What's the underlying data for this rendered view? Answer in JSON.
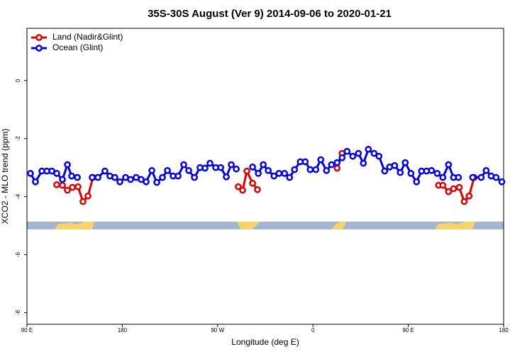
{
  "chart_data": {
    "type": "line",
    "title": "35S-30S August (Ver 9)   2014-09-06 to 2020-01-21",
    "x_label": "Longitude (deg E)",
    "y_label": "XCO2 - MLO trend (ppm)",
    "xlim": [
      90,
      540
    ],
    "xticks": [
      {
        "value": 90,
        "label": "90 E"
      },
      180,
      {
        "value": 270,
        "label": "90 W"
      },
      {
        "value": 360,
        "label": "0"
      },
      {
        "value": 450,
        "label": "90 E"
      },
      {
        "value": 540,
        "label": "180"
      }
    ],
    "ylim": [
      -8.4,
      1.8
    ],
    "yticks": [
      0,
      -2,
      -4,
      -6,
      -8
    ],
    "legend": "top-left",
    "series": [
      {
        "name": "Land (Nadir&Glint)",
        "color": "#e00000",
        "x": [
          118.1,
          123.5,
          128.2,
          132.9,
          138.2,
          142.9,
          147.6,
          152.3,
          null,
          289.5,
          293.6,
          297.6,
          303,
          307.6,
          null,
          382.8,
          387.5,
          null,
          478.6,
          482.6,
          488,
          492.7,
          498.1,
          502.8,
          507.4,
          512.2
        ],
        "values": [
          -3.59,
          -3.61,
          -3.78,
          -3.68,
          -3.66,
          -4.17,
          -3.98,
          -3.34,
          null,
          -3.66,
          -3.78,
          -3.12,
          -3.54,
          -3.76,
          null,
          -3.02,
          -2.51,
          null,
          -3.61,
          -3.61,
          -3.83,
          -3.73,
          -3.68,
          -4.17,
          -3.98,
          -3.34
        ]
      },
      {
        "name": "Ocean (Glint)",
        "color": "#0000ee",
        "x": [
          93.3,
          98,
          104.1,
          108.8,
          113.5,
          118.1,
          123.5,
          128.2,
          132.2,
          137.6,
          null,
          151.6,
          157,
          163.6,
          168.3,
          173,
          177.7,
          183.1,
          187.8,
          193.1,
          197.8,
          202.5,
          207.9,
          212.6,
          217.9,
          222.6,
          228,
          232.7,
          238,
          242.7,
          248.1,
          253.4,
          258.1,
          262.8,
          268.2,
          272.9,
          278.2,
          282.9,
          287.6,
          null,
          303,
          308.4,
          313.1,
          317.8,
          323.2,
          327.9,
          333.2,
          337.9,
          342.6,
          348,
          352.7,
          357.4,
          362.7,
          367.4,
          372.8,
          377.5,
          382.8,
          387.5,
          392.2,
          397.6,
          402.9,
          407.6,
          412.3,
          417.7,
          422.3,
          427.7,
          432.4,
          437.1,
          442.4,
          447.1,
          452.5,
          457.8,
          462.5,
          467.2,
          471.9,
          477.3,
          482.6,
          488,
          492.7,
          497.4,
          null,
          510.8,
          518.8,
          523.5,
          528.2,
          532.9,
          538.3
        ],
        "values": [
          -3.2,
          -3.49,
          -3.12,
          -3.12,
          -3.12,
          -3.2,
          -3.41,
          -2.9,
          -3.29,
          -3.34,
          null,
          -3.34,
          -3.34,
          -3.12,
          -3.29,
          -3.34,
          -3.49,
          -3.34,
          -3.41,
          -3.34,
          -3.41,
          -3.49,
          -3.1,
          -3.51,
          -3.34,
          -3.1,
          -3.29,
          -3.29,
          -2.9,
          -3.1,
          -3.34,
          -3.0,
          -3.02,
          -2.85,
          -3.0,
          -3.0,
          -3.32,
          -2.9,
          -3.05,
          null,
          -2.98,
          -3.2,
          -2.9,
          -3.1,
          -3.29,
          -3.2,
          -3.2,
          -3.34,
          -3.07,
          -2.8,
          -2.8,
          -3.07,
          -3.07,
          -2.73,
          -3.1,
          -2.9,
          -2.83,
          -2.66,
          -2.44,
          -2.61,
          -2.51,
          -2.85,
          -2.37,
          -2.51,
          -2.61,
          -3.12,
          -2.98,
          -2.93,
          -3.17,
          -2.83,
          -3.2,
          -3.49,
          -3.12,
          -3.12,
          -3.1,
          -3.2,
          -3.34,
          -2.9,
          -3.34,
          -3.34,
          null,
          -3.34,
          -3.34,
          -3.1,
          -3.29,
          -3.34,
          -3.49
        ]
      }
    ]
  }
}
